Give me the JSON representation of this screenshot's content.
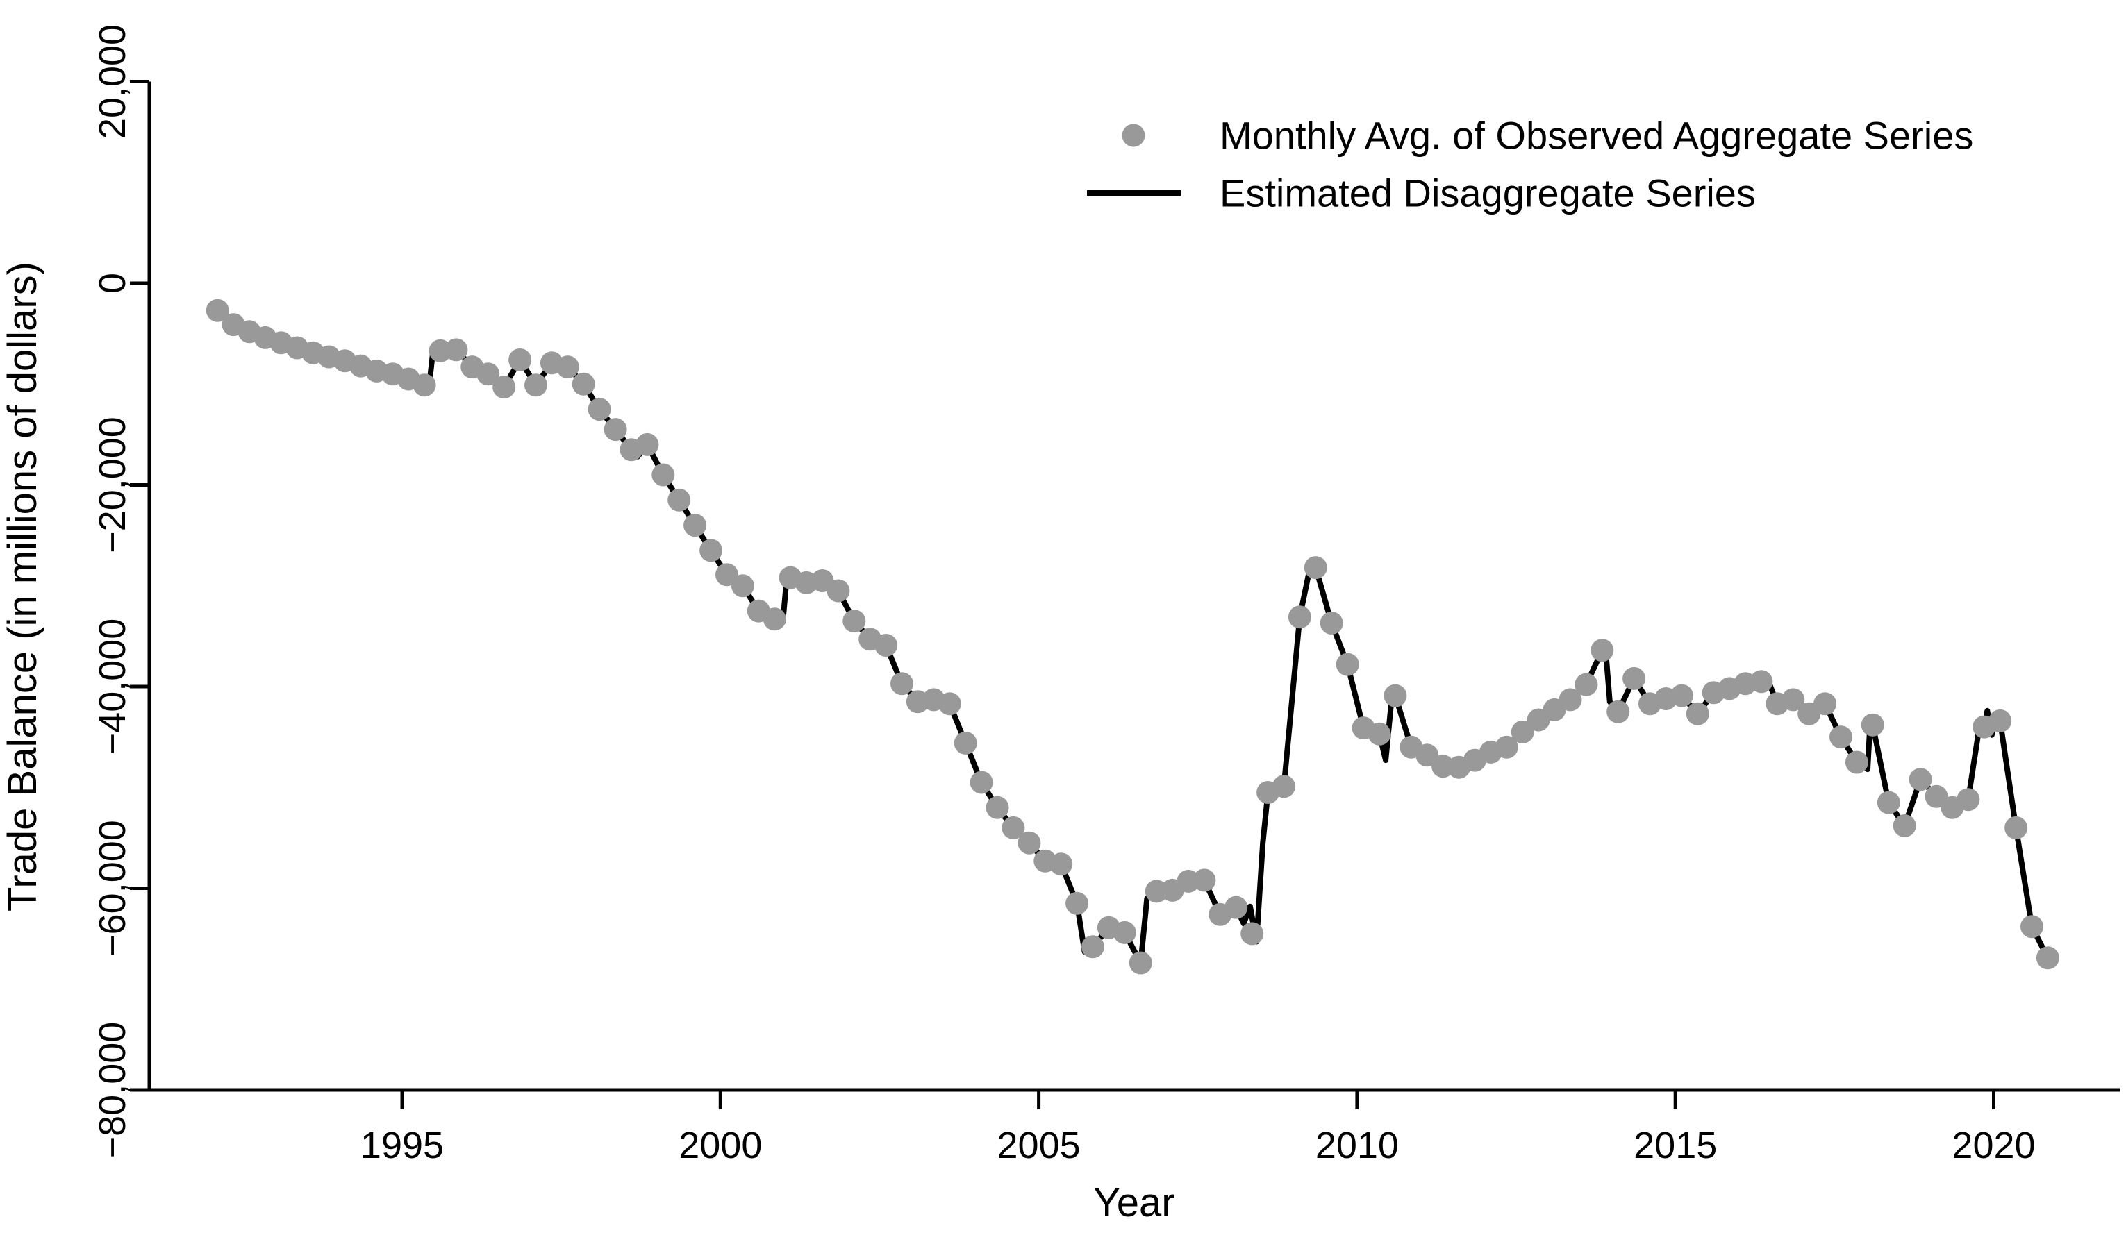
{
  "chart_data": {
    "type": "line",
    "title": "",
    "xlabel": "Year",
    "ylabel": "Trade Balance (in millions of dollars)",
    "xlim": [
      1991.7,
      2021.6
    ],
    "ylim": [
      -80000,
      20000
    ],
    "grid": false,
    "legend_position": "top-right",
    "background": "#ffffff",
    "axis_color": "#000000",
    "x_ticks": [
      {
        "value": 1995,
        "label": "1995"
      },
      {
        "value": 2000,
        "label": "2000"
      },
      {
        "value": 2005,
        "label": "2005"
      },
      {
        "value": 2010,
        "label": "2010"
      },
      {
        "value": 2015,
        "label": "2015"
      },
      {
        "value": 2020,
        "label": "2020"
      }
    ],
    "y_ticks": [
      {
        "value": 20000,
        "label": "20,000"
      },
      {
        "value": 0,
        "label": "0"
      },
      {
        "value": -20000,
        "label": "−20,000"
      },
      {
        "value": -40000,
        "label": "−40,000"
      },
      {
        "value": -60000,
        "label": "−60,000"
      },
      {
        "value": -80000,
        "label": "−80,000"
      }
    ],
    "series": [
      {
        "name": "Monthly Avg. of Observed Aggregate Series",
        "type": "scatter",
        "color": "#999999",
        "marker": "filled-circle",
        "points": [
          [
            1992.1,
            -2700
          ],
          [
            1992.35,
            -4100
          ],
          [
            1992.6,
            -4800
          ],
          [
            1992.85,
            -5400
          ],
          [
            1993.1,
            -5900
          ],
          [
            1993.35,
            -6400
          ],
          [
            1993.6,
            -6900
          ],
          [
            1993.85,
            -7300
          ],
          [
            1994.1,
            -7700
          ],
          [
            1994.35,
            -8200
          ],
          [
            1994.6,
            -8700
          ],
          [
            1994.85,
            -9000
          ],
          [
            1995.1,
            -9500
          ],
          [
            1995.35,
            -10100
          ],
          [
            1995.6,
            -6700
          ],
          [
            1995.85,
            -6600
          ],
          [
            1996.1,
            -8300
          ],
          [
            1996.35,
            -9000
          ],
          [
            1996.6,
            -10300
          ],
          [
            1996.85,
            -7600
          ],
          [
            1997.1,
            -10100
          ],
          [
            1997.35,
            -7900
          ],
          [
            1997.6,
            -8300
          ],
          [
            1997.85,
            -10000
          ],
          [
            1998.1,
            -12500
          ],
          [
            1998.35,
            -14500
          ],
          [
            1998.6,
            -16500
          ],
          [
            1998.85,
            -16000
          ],
          [
            1999.1,
            -19000
          ],
          [
            1999.35,
            -21500
          ],
          [
            1999.6,
            -24000
          ],
          [
            1999.85,
            -26500
          ],
          [
            2000.1,
            -28900
          ],
          [
            2000.35,
            -30000
          ],
          [
            2000.6,
            -32500
          ],
          [
            2000.85,
            -33300
          ],
          [
            2001.1,
            -29200
          ],
          [
            2001.35,
            -29700
          ],
          [
            2001.6,
            -29500
          ],
          [
            2001.85,
            -30500
          ],
          [
            2002.1,
            -33500
          ],
          [
            2002.35,
            -35300
          ],
          [
            2002.6,
            -35900
          ],
          [
            2002.85,
            -39700
          ],
          [
            2003.1,
            -41500
          ],
          [
            2003.35,
            -41300
          ],
          [
            2003.6,
            -41700
          ],
          [
            2003.85,
            -45600
          ],
          [
            2004.1,
            -49500
          ],
          [
            2004.35,
            -52000
          ],
          [
            2004.6,
            -54000
          ],
          [
            2004.85,
            -55500
          ],
          [
            2005.1,
            -57300
          ],
          [
            2005.35,
            -57600
          ],
          [
            2005.6,
            -61500
          ],
          [
            2005.85,
            -65800
          ],
          [
            2006.1,
            -63900
          ],
          [
            2006.35,
            -64400
          ],
          [
            2006.6,
            -67400
          ],
          [
            2006.85,
            -60300
          ],
          [
            2007.1,
            -60200
          ],
          [
            2007.35,
            -59300
          ],
          [
            2007.6,
            -59200
          ],
          [
            2007.85,
            -62600
          ],
          [
            2008.1,
            -61900
          ],
          [
            2008.35,
            -64500
          ],
          [
            2008.6,
            -50500
          ],
          [
            2008.85,
            -49900
          ],
          [
            2009.1,
            -33100
          ],
          [
            2009.35,
            -28200
          ],
          [
            2009.6,
            -33700
          ],
          [
            2009.85,
            -37800
          ],
          [
            2010.1,
            -44100
          ],
          [
            2010.35,
            -44700
          ],
          [
            2010.6,
            -40900
          ],
          [
            2010.85,
            -46000
          ],
          [
            2011.1,
            -46800
          ],
          [
            2011.35,
            -47900
          ],
          [
            2011.6,
            -48000
          ],
          [
            2011.85,
            -47300
          ],
          [
            2012.1,
            -46500
          ],
          [
            2012.35,
            -46000
          ],
          [
            2012.6,
            -44500
          ],
          [
            2012.85,
            -43300
          ],
          [
            2013.1,
            -42300
          ],
          [
            2013.35,
            -41300
          ],
          [
            2013.6,
            -39800
          ],
          [
            2013.85,
            -36400
          ],
          [
            2014.1,
            -42500
          ],
          [
            2014.35,
            -39200
          ],
          [
            2014.6,
            -41700
          ],
          [
            2014.85,
            -41200
          ],
          [
            2015.1,
            -40900
          ],
          [
            2015.35,
            -42700
          ],
          [
            2015.6,
            -40600
          ],
          [
            2015.85,
            -40200
          ],
          [
            2016.1,
            -39700
          ],
          [
            2016.35,
            -39500
          ],
          [
            2016.6,
            -41700
          ],
          [
            2016.85,
            -41300
          ],
          [
            2017.1,
            -42700
          ],
          [
            2017.35,
            -41700
          ],
          [
            2017.6,
            -45000
          ],
          [
            2017.85,
            -47500
          ],
          [
            2018.1,
            -43800
          ],
          [
            2018.35,
            -51500
          ],
          [
            2018.6,
            -53800
          ],
          [
            2018.85,
            -49200
          ],
          [
            2019.1,
            -50900
          ],
          [
            2019.35,
            -52000
          ],
          [
            2019.6,
            -51200
          ],
          [
            2019.85,
            -44000
          ],
          [
            2020.1,
            -43400
          ],
          [
            2020.35,
            -54000
          ],
          [
            2020.6,
            -63800
          ],
          [
            2020.85,
            -66900
          ]
        ]
      },
      {
        "name": "Estimated Disaggregate Series",
        "type": "line",
        "color": "#000000",
        "points": [
          [
            1992.02,
            -2400
          ],
          [
            1992.1,
            -2700
          ],
          [
            1992.35,
            -4100
          ],
          [
            1992.6,
            -4800
          ],
          [
            1992.85,
            -5400
          ],
          [
            1993.1,
            -5900
          ],
          [
            1993.35,
            -6400
          ],
          [
            1993.6,
            -6900
          ],
          [
            1993.85,
            -7300
          ],
          [
            1994.1,
            -7700
          ],
          [
            1994.35,
            -8200
          ],
          [
            1994.6,
            -8700
          ],
          [
            1994.85,
            -9000
          ],
          [
            1995.1,
            -9500
          ],
          [
            1995.35,
            -10100
          ],
          [
            1995.42,
            -10400
          ],
          [
            1995.48,
            -7000
          ],
          [
            1995.6,
            -6700
          ],
          [
            1995.85,
            -6600
          ],
          [
            1996.1,
            -8300
          ],
          [
            1996.35,
            -9000
          ],
          [
            1996.6,
            -10300
          ],
          [
            1996.85,
            -7600
          ],
          [
            1997.1,
            -10100
          ],
          [
            1997.35,
            -7900
          ],
          [
            1997.6,
            -8300
          ],
          [
            1997.85,
            -10000
          ],
          [
            1998.1,
            -12500
          ],
          [
            1998.35,
            -14500
          ],
          [
            1998.6,
            -16500
          ],
          [
            1998.7,
            -17200
          ],
          [
            1998.85,
            -16000
          ],
          [
            1999.1,
            -19000
          ],
          [
            1999.35,
            -21500
          ],
          [
            1999.6,
            -24000
          ],
          [
            1999.85,
            -26500
          ],
          [
            2000.1,
            -28900
          ],
          [
            2000.35,
            -30000
          ],
          [
            2000.6,
            -32500
          ],
          [
            2000.85,
            -33300
          ],
          [
            2000.98,
            -33600
          ],
          [
            2001.04,
            -29300
          ],
          [
            2001.1,
            -29200
          ],
          [
            2001.35,
            -29700
          ],
          [
            2001.6,
            -29500
          ],
          [
            2001.85,
            -30500
          ],
          [
            2002.1,
            -33500
          ],
          [
            2002.35,
            -35300
          ],
          [
            2002.6,
            -35900
          ],
          [
            2002.85,
            -39700
          ],
          [
            2003.1,
            -41500
          ],
          [
            2003.35,
            -41300
          ],
          [
            2003.6,
            -41700
          ],
          [
            2003.85,
            -45600
          ],
          [
            2004.1,
            -49500
          ],
          [
            2004.35,
            -52000
          ],
          [
            2004.6,
            -54000
          ],
          [
            2004.85,
            -55500
          ],
          [
            2005.1,
            -57300
          ],
          [
            2005.35,
            -57600
          ],
          [
            2005.6,
            -61500
          ],
          [
            2005.72,
            -66300
          ],
          [
            2005.85,
            -65800
          ],
          [
            2006.1,
            -63900
          ],
          [
            2006.35,
            -64400
          ],
          [
            2006.6,
            -67400
          ],
          [
            2006.7,
            -61000
          ],
          [
            2006.85,
            -60300
          ],
          [
            2007.1,
            -60200
          ],
          [
            2007.35,
            -59300
          ],
          [
            2007.6,
            -59200
          ],
          [
            2007.85,
            -62600
          ],
          [
            2008.1,
            -61900
          ],
          [
            2008.22,
            -63500
          ],
          [
            2008.32,
            -61800
          ],
          [
            2008.42,
            -65300
          ],
          [
            2008.52,
            -55500
          ],
          [
            2008.6,
            -50500
          ],
          [
            2008.85,
            -49900
          ],
          [
            2009.1,
            -33100
          ],
          [
            2009.28,
            -27600
          ],
          [
            2009.35,
            -28200
          ],
          [
            2009.6,
            -33700
          ],
          [
            2009.85,
            -37800
          ],
          [
            2010.1,
            -44100
          ],
          [
            2010.35,
            -44700
          ],
          [
            2010.45,
            -47300
          ],
          [
            2010.55,
            -40800
          ],
          [
            2010.6,
            -40900
          ],
          [
            2010.85,
            -46000
          ],
          [
            2011.1,
            -46800
          ],
          [
            2011.35,
            -47900
          ],
          [
            2011.6,
            -48000
          ],
          [
            2011.85,
            -47300
          ],
          [
            2012.1,
            -46500
          ],
          [
            2012.35,
            -46000
          ],
          [
            2012.6,
            -44500
          ],
          [
            2012.85,
            -43300
          ],
          [
            2013.1,
            -42300
          ],
          [
            2013.35,
            -41300
          ],
          [
            2013.6,
            -39800
          ],
          [
            2013.85,
            -36400
          ],
          [
            2013.9,
            -36000
          ],
          [
            2013.97,
            -41500
          ],
          [
            2014.1,
            -42500
          ],
          [
            2014.35,
            -39200
          ],
          [
            2014.6,
            -41700
          ],
          [
            2014.85,
            -41200
          ],
          [
            2015.1,
            -40900
          ],
          [
            2015.35,
            -42700
          ],
          [
            2015.6,
            -40600
          ],
          [
            2015.85,
            -40200
          ],
          [
            2016.1,
            -39700
          ],
          [
            2016.35,
            -39500
          ],
          [
            2016.45,
            -39300
          ],
          [
            2016.6,
            -41700
          ],
          [
            2016.85,
            -41300
          ],
          [
            2017.1,
            -42700
          ],
          [
            2017.35,
            -41700
          ],
          [
            2017.6,
            -45000
          ],
          [
            2017.85,
            -47500
          ],
          [
            2018.02,
            -48200
          ],
          [
            2018.06,
            -43500
          ],
          [
            2018.1,
            -43800
          ],
          [
            2018.35,
            -51500
          ],
          [
            2018.6,
            -53800
          ],
          [
            2018.85,
            -49200
          ],
          [
            2019.1,
            -50900
          ],
          [
            2019.35,
            -52000
          ],
          [
            2019.6,
            -51200
          ],
          [
            2019.78,
            -43800
          ],
          [
            2019.85,
            -44000
          ],
          [
            2019.9,
            -42400
          ],
          [
            2019.97,
            -44800
          ],
          [
            2020.04,
            -43000
          ],
          [
            2020.1,
            -43400
          ],
          [
            2020.35,
            -54000
          ],
          [
            2020.6,
            -63800
          ],
          [
            2020.85,
            -66900
          ],
          [
            2020.96,
            -67300
          ]
        ]
      }
    ]
  }
}
